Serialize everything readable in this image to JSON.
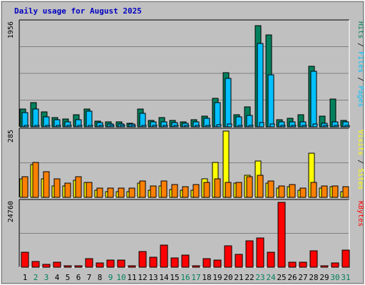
{
  "chart_data": [
    {
      "type": "bar",
      "title": "Daily usage for August 2025",
      "categories": [
        "1",
        "2",
        "3",
        "4",
        "5",
        "6",
        "7",
        "8",
        "9",
        "10",
        "11",
        "12",
        "13",
        "14",
        "15",
        "16",
        "17",
        "18",
        "19",
        "20",
        "21",
        "22",
        "23",
        "24",
        "25",
        "26",
        "27",
        "28",
        "29",
        "30",
        "31"
      ],
      "weekend_days": [
        "2",
        "3",
        "9",
        "10",
        "16",
        "17",
        "23",
        "24",
        "30",
        "31"
      ],
      "ymax_label": "1956",
      "ylim": [
        0,
        1956
      ],
      "right_labels": [
        "Hits",
        "Files",
        "Pages"
      ],
      "series": [
        {
          "name": "Hits",
          "color": "#00805c",
          "values": [
            340,
            460,
            280,
            170,
            150,
            230,
            340,
            110,
            90,
            90,
            70,
            330,
            120,
            170,
            120,
            90,
            130,
            200,
            540,
            1020,
            230,
            380,
            1900,
            1730,
            130,
            160,
            230,
            1140,
            200,
            520,
            120
          ]
        },
        {
          "name": "Files",
          "color": "#00c0ff",
          "values": [
            270,
            340,
            190,
            130,
            90,
            130,
            290,
            80,
            60,
            60,
            50,
            260,
            90,
            90,
            80,
            70,
            100,
            160,
            460,
            910,
            190,
            210,
            1570,
            980,
            100,
            100,
            100,
            1040,
            70,
            100,
            90
          ]
        },
        {
          "name": "Pages",
          "color": "#00c0ff",
          "values": [
            30,
            30,
            25,
            20,
            15,
            20,
            25,
            12,
            10,
            10,
            8,
            25,
            12,
            15,
            12,
            10,
            12,
            20,
            35,
            60,
            20,
            25,
            80,
            60,
            12,
            15,
            20,
            50,
            12,
            20,
            10
          ]
        }
      ]
    },
    {
      "type": "bar",
      "ymax_label": "285",
      "ylim": [
        0,
        285
      ],
      "right_labels": [
        "Visits",
        "Sites"
      ],
      "series": [
        {
          "name": "Sites",
          "color": "#ffff00",
          "values": [
            80,
            140,
            80,
            50,
            50,
            75,
            65,
            30,
            25,
            25,
            25,
            60,
            30,
            50,
            35,
            30,
            30,
            80,
            150,
            285,
            60,
            95,
            155,
            60,
            40,
            45,
            30,
            190,
            40,
            45,
            25
          ]
        },
        {
          "name": "Visits",
          "color": "#ff8000",
          "values": [
            90,
            150,
            110,
            80,
            60,
            90,
            65,
            40,
            40,
            40,
            40,
            70,
            50,
            70,
            55,
            45,
            55,
            65,
            80,
            65,
            65,
            90,
            95,
            70,
            50,
            55,
            40,
            65,
            50,
            50,
            45
          ]
        }
      ]
    },
    {
      "type": "bar",
      "ymax_label": "24760",
      "ylim": [
        0,
        24760
      ],
      "right_labels": [
        "KBytes"
      ],
      "series": [
        {
          "name": "KBytes",
          "color": "#ff0000",
          "values": [
            5650,
            2150,
            1200,
            1850,
            450,
            500,
            3300,
            1600,
            2850,
            2850,
            650,
            6000,
            3850,
            8400,
            3500,
            4500,
            500,
            3150,
            2750,
            8200,
            4950,
            10100,
            11100,
            5600,
            24760,
            1950,
            1950,
            6200,
            520,
            1700,
            6600
          ]
        }
      ]
    }
  ]
}
